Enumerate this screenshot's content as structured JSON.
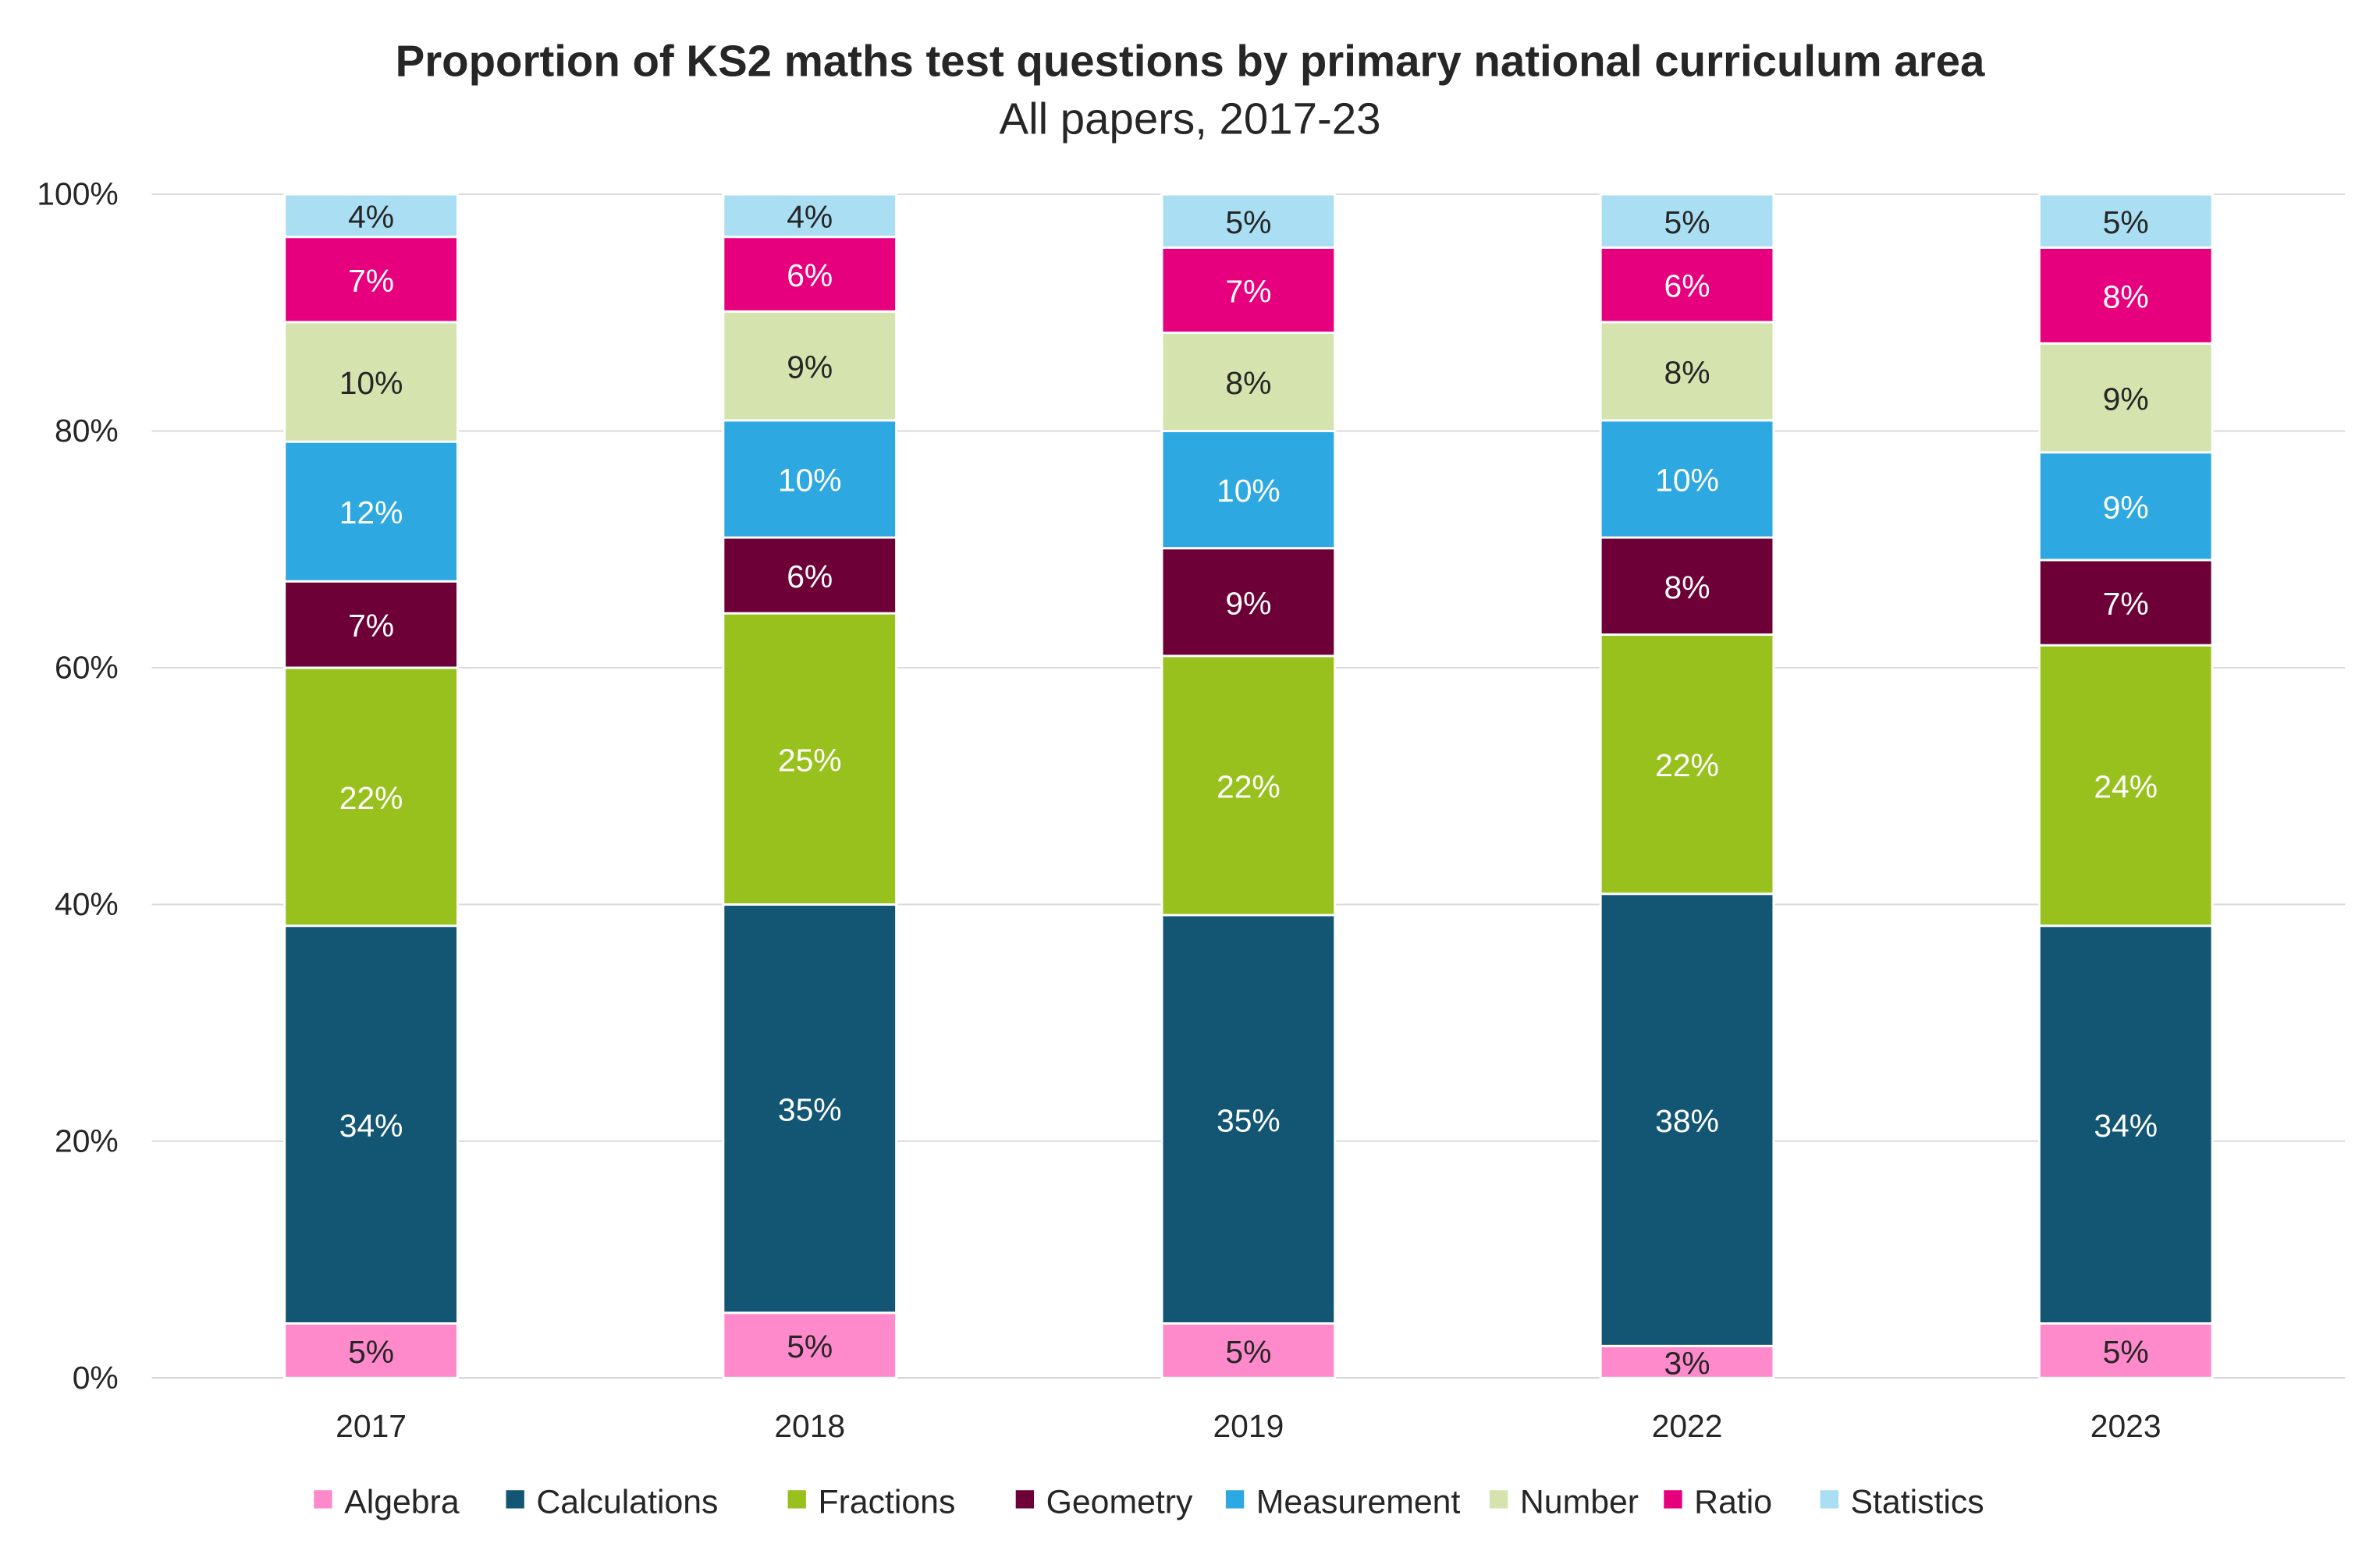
{
  "chart_data": {
    "type": "bar",
    "stacked": true,
    "title": "Proportion of KS2 maths test questions by primary national curriculum area",
    "subtitle": "All papers, 2017-23",
    "xlabel": "",
    "ylabel": "",
    "ylim": [
      0,
      100
    ],
    "y_ticks": [
      "0%",
      "20%",
      "40%",
      "60%",
      "80%",
      "100%"
    ],
    "y_tick_values": [
      0,
      20,
      40,
      60,
      80,
      100
    ],
    "grid": true,
    "legend_position": "bottom",
    "categories": [
      "2017",
      "2018",
      "2019",
      "2022",
      "2023"
    ],
    "series": [
      {
        "name": "Algebra",
        "color": "#FF8ACB",
        "label_color": "#262626",
        "values": [
          4.6,
          5.5,
          4.6,
          2.7,
          4.6
        ],
        "labels": [
          "5%",
          "5%",
          "5%",
          "3%",
          "5%"
        ]
      },
      {
        "name": "Calculations",
        "color": "#125673",
        "label_color": "#ffffff",
        "values": [
          33.6,
          34.5,
          34.5,
          38.2,
          33.6
        ],
        "labels": [
          "34%",
          "35%",
          "35%",
          "38%",
          "34%"
        ]
      },
      {
        "name": "Fractions",
        "color": "#98C11E",
        "label_color": "#ffffff",
        "values": [
          21.8,
          24.6,
          21.9,
          21.9,
          23.7
        ],
        "labels": [
          "22%",
          "25%",
          "22%",
          "22%",
          "24%"
        ]
      },
      {
        "name": "Geometry",
        "color": "#6D0037",
        "label_color": "#ffffff",
        "values": [
          7.3,
          6.4,
          9.1,
          8.2,
          7.2
        ],
        "labels": [
          "7%",
          "6%",
          "9%",
          "8%",
          "7%"
        ]
      },
      {
        "name": "Measurement",
        "color": "#2DA8E0",
        "label_color": "#ffffff",
        "values": [
          11.8,
          9.9,
          9.9,
          9.9,
          9.1
        ],
        "labels": [
          "12%",
          "10%",
          "10%",
          "10%",
          "9%"
        ]
      },
      {
        "name": "Number",
        "color": "#D5E3AE",
        "label_color": "#262626",
        "values": [
          10.1,
          9.2,
          8.3,
          8.3,
          9.2
        ],
        "labels": [
          "10%",
          "9%",
          "8%",
          "8%",
          "9%"
        ]
      },
      {
        "name": "Ratio",
        "color": "#E6007E",
        "label_color": "#ffffff",
        "values": [
          7.2,
          6.3,
          7.2,
          6.3,
          8.1
        ],
        "labels": [
          "7%",
          "6%",
          "7%",
          "6%",
          "8%"
        ]
      },
      {
        "name": "Statistics",
        "color": "#A9DEF3",
        "label_color": "#262626",
        "values": [
          3.6,
          3.6,
          4.5,
          4.5,
          4.5
        ],
        "labels": [
          "4%",
          "4%",
          "5%",
          "5%",
          "5%"
        ]
      }
    ]
  }
}
